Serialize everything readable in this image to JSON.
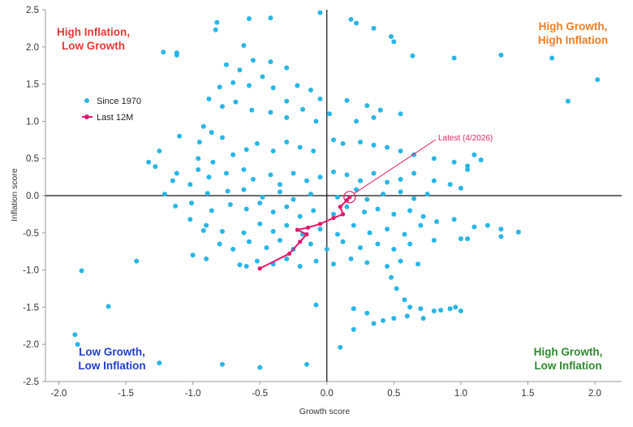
{
  "chart_data": {
    "type": "scatter",
    "xlabel": "Growth score",
    "ylabel": "Inflation score",
    "xlim": [
      -2.1,
      2.2
    ],
    "ylim": [
      -2.5,
      2.5
    ],
    "x_ticks": [
      "-2.0",
      "-1.5",
      "-1.0",
      "-0.5",
      "0.0",
      "0.5",
      "1.0",
      "1.5",
      "2.0"
    ],
    "y_ticks": [
      "2.5",
      "2.0",
      "1.5",
      "1.0",
      "0.5",
      "0.0",
      "-0.5",
      "-1.0",
      "-1.5",
      "-2.0",
      "-2.5"
    ],
    "grid": false,
    "legend_position": "top-left",
    "colors": {
      "since1970": "#29b6e6",
      "last12m": "#e0196e",
      "quadrant_top_left": "#e53935",
      "quadrant_top_right": "#ef7d22",
      "quadrant_bottom_left": "#1f3fcf",
      "quadrant_bottom_right": "#2e8b2e",
      "annotation": "#e0245e"
    },
    "quadrant_labels": {
      "top_left": [
        "High Inflation,",
        "Low Growth"
      ],
      "top_right": [
        "High Growth,",
        "High Inflation"
      ],
      "bottom_left": [
        "Low Growth,",
        "Low Inflation"
      ],
      "bottom_right": [
        "High Growth,",
        "Low Inflation"
      ]
    },
    "legend": [
      {
        "name": "Since 1970",
        "marker": "dot"
      },
      {
        "name": "Last 12M",
        "marker": "line-dot"
      }
    ],
    "annotation": {
      "text": "Latest (4/2026)",
      "x": 0.17,
      "y": -0.02
    },
    "series": [
      {
        "name": "Since 1970",
        "points": [
          [
            -0.05,
            2.46
          ],
          [
            -0.58,
            2.38
          ],
          [
            0.18,
            2.37
          ],
          [
            -0.42,
            2.39
          ],
          [
            -0.82,
            2.33
          ],
          [
            0.22,
            2.32
          ],
          [
            0.35,
            2.25
          ],
          [
            0.48,
            2.14
          ],
          [
            -0.62,
            2.02
          ],
          [
            0.5,
            2.07
          ],
          [
            -0.83,
            2.23
          ],
          [
            -1.12,
            1.92
          ],
          [
            -1.22,
            1.93
          ],
          [
            -1.12,
            1.89
          ],
          [
            0.64,
            1.88
          ],
          [
            0.95,
            1.85
          ],
          [
            1.3,
            1.89
          ],
          [
            1.68,
            1.85
          ],
          [
            2.02,
            1.56
          ],
          [
            1.8,
            1.27
          ],
          [
            -0.75,
            1.76
          ],
          [
            -0.65,
            1.69
          ],
          [
            -0.55,
            1.82
          ],
          [
            -0.42,
            1.8
          ],
          [
            -0.3,
            1.72
          ],
          [
            -0.48,
            1.6
          ],
          [
            -0.58,
            1.48
          ],
          [
            -0.7,
            1.52
          ],
          [
            -0.8,
            1.46
          ],
          [
            -0.4,
            1.45
          ],
          [
            -0.22,
            1.48
          ],
          [
            -0.12,
            1.42
          ],
          [
            -0.05,
            1.3
          ],
          [
            0.15,
            1.28
          ],
          [
            0.3,
            1.21
          ],
          [
            0.4,
            1.15
          ],
          [
            0.55,
            1.1
          ],
          [
            0.35,
            1.05
          ],
          [
            0.22,
            1.0
          ],
          [
            -0.3,
            1.05
          ],
          [
            -0.42,
            1.12
          ],
          [
            -0.56,
            1.15
          ],
          [
            -0.68,
            1.26
          ],
          [
            -0.78,
            1.2
          ],
          [
            -0.88,
            1.3
          ],
          [
            -0.3,
            1.27
          ],
          [
            -0.18,
            1.16
          ],
          [
            -0.08,
            1.0
          ],
          [
            0.02,
            1.1
          ],
          [
            -0.92,
            0.93
          ],
          [
            -0.86,
            0.85
          ],
          [
            -0.78,
            0.78
          ],
          [
            -0.95,
            0.72
          ],
          [
            -1.1,
            0.8
          ],
          [
            -1.25,
            0.6
          ],
          [
            -1.33,
            0.45
          ],
          [
            -1.28,
            0.39
          ],
          [
            -0.96,
            0.5
          ],
          [
            -0.85,
            0.45
          ],
          [
            -0.7,
            0.55
          ],
          [
            -0.6,
            0.62
          ],
          [
            -0.52,
            0.7
          ],
          [
            -0.4,
            0.6
          ],
          [
            -0.3,
            0.72
          ],
          [
            -0.2,
            0.65
          ],
          [
            -0.1,
            0.6
          ],
          [
            0.05,
            0.75
          ],
          [
            0.12,
            0.7
          ],
          [
            0.25,
            0.72
          ],
          [
            0.35,
            0.68
          ],
          [
            0.45,
            0.65
          ],
          [
            0.55,
            0.6
          ],
          [
            0.65,
            0.55
          ],
          [
            0.8,
            0.5
          ],
          [
            0.95,
            0.45
          ],
          [
            1.05,
            0.4
          ],
          [
            1.1,
            0.55
          ],
          [
            1.15,
            0.48
          ],
          [
            -1.12,
            0.3
          ],
          [
            -0.96,
            0.35
          ],
          [
            -1.15,
            0.2
          ],
          [
            -1.02,
            0.15
          ],
          [
            -0.88,
            0.25
          ],
          [
            -0.75,
            0.3
          ],
          [
            -0.62,
            0.35
          ],
          [
            -0.55,
            0.22
          ],
          [
            -0.42,
            0.28
          ],
          [
            -0.35,
            0.15
          ],
          [
            -0.25,
            0.3
          ],
          [
            -0.15,
            0.2
          ],
          [
            -0.05,
            0.25
          ],
          [
            0.05,
            0.32
          ],
          [
            0.15,
            0.28
          ],
          [
            0.25,
            0.2
          ],
          [
            0.35,
            0.3
          ],
          [
            0.45,
            0.18
          ],
          [
            0.55,
            0.22
          ],
          [
            0.65,
            0.3
          ],
          [
            0.8,
            0.2
          ],
          [
            0.92,
            0.15
          ],
          [
            1.0,
            0.1
          ],
          [
            1.05,
            0.35
          ],
          [
            -1.21,
            0.02
          ],
          [
            -0.89,
            0.03
          ],
          [
            -0.74,
            0.06
          ],
          [
            -0.62,
            0.08
          ],
          [
            -0.48,
            -0.02
          ],
          [
            -0.35,
            0.05
          ],
          [
            -0.25,
            -0.05
          ],
          [
            -0.12,
            0.02
          ],
          [
            0.08,
            -0.02
          ],
          [
            0.22,
            0.08
          ],
          [
            0.3,
            -0.05
          ],
          [
            0.42,
            0.02
          ],
          [
            0.55,
            0.05
          ],
          [
            0.65,
            -0.04
          ],
          [
            0.75,
            0.02
          ],
          [
            -1.13,
            -0.14
          ],
          [
            -1.01,
            -0.1
          ],
          [
            -0.86,
            -0.2
          ],
          [
            -0.72,
            -0.12
          ],
          [
            -0.6,
            -0.18
          ],
          [
            -0.5,
            -0.1
          ],
          [
            -0.4,
            -0.22
          ],
          [
            -0.3,
            -0.15
          ],
          [
            -0.2,
            -0.28
          ],
          [
            -0.1,
            -0.2
          ],
          [
            0.05,
            -0.25
          ],
          [
            0.15,
            -0.15
          ],
          [
            0.28,
            -0.22
          ],
          [
            0.38,
            -0.18
          ],
          [
            0.5,
            -0.25
          ],
          [
            0.62,
            -0.2
          ],
          [
            0.72,
            -0.28
          ],
          [
            -1.02,
            -0.32
          ],
          [
            -0.9,
            -0.4
          ],
          [
            -0.92,
            -0.47
          ],
          [
            -0.78,
            -0.48
          ],
          [
            -0.62,
            -0.5
          ],
          [
            -0.5,
            -0.38
          ],
          [
            -0.4,
            -0.48
          ],
          [
            -0.3,
            -0.4
          ],
          [
            -0.18,
            -0.52
          ],
          [
            -0.05,
            -0.45
          ],
          [
            0.08,
            -0.52
          ],
          [
            0.2,
            -0.4
          ],
          [
            0.32,
            -0.5
          ],
          [
            0.45,
            -0.45
          ],
          [
            0.58,
            -0.52
          ],
          [
            0.7,
            -0.4
          ],
          [
            0.82,
            -0.35
          ],
          [
            0.95,
            -0.32
          ],
          [
            1.1,
            -0.42
          ],
          [
            1.2,
            -0.4
          ],
          [
            1.3,
            -0.45
          ],
          [
            1.3,
            -0.55
          ],
          [
            1.43,
            -0.49
          ],
          [
            -0.8,
            -0.65
          ],
          [
            -0.7,
            -0.72
          ],
          [
            -0.58,
            -0.62
          ],
          [
            -0.45,
            -0.7
          ],
          [
            -0.35,
            -0.6
          ],
          [
            -0.25,
            -0.72
          ],
          [
            -0.12,
            -0.65
          ],
          [
            0.0,
            -0.72
          ],
          [
            0.12,
            -0.62
          ],
          [
            0.25,
            -0.7
          ],
          [
            0.38,
            -0.65
          ],
          [
            0.5,
            -0.72
          ],
          [
            0.62,
            -0.65
          ],
          [
            0.8,
            -0.6
          ],
          [
            1.0,
            -0.58
          ],
          [
            1.05,
            -0.58
          ],
          [
            -0.65,
            -0.93
          ],
          [
            -0.52,
            -0.88
          ],
          [
            -0.4,
            -0.92
          ],
          [
            -0.3,
            -0.85
          ],
          [
            -0.2,
            -0.95
          ],
          [
            -0.08,
            -0.88
          ],
          [
            0.05,
            -0.92
          ],
          [
            0.18,
            -0.85
          ],
          [
            0.3,
            -0.9
          ],
          [
            0.45,
            -0.95
          ],
          [
            0.55,
            -0.88
          ],
          [
            0.68,
            -0.92
          ],
          [
            -0.6,
            -0.95
          ],
          [
            -0.9,
            -0.85
          ],
          [
            -1.0,
            -0.8
          ],
          [
            -1.42,
            -0.88
          ],
          [
            -1.83,
            -1.01
          ],
          [
            -1.63,
            -1.49
          ],
          [
            -0.08,
            -1.47
          ],
          [
            0.2,
            -1.52
          ],
          [
            0.48,
            -1.1
          ],
          [
            0.52,
            -1.25
          ],
          [
            0.58,
            -1.4
          ],
          [
            0.62,
            -1.5
          ],
          [
            0.7,
            -1.52
          ],
          [
            0.8,
            -1.55
          ],
          [
            0.85,
            -1.54
          ],
          [
            0.92,
            -1.52
          ],
          [
            0.96,
            -1.5
          ],
          [
            1.0,
            -1.55
          ],
          [
            0.35,
            -1.72
          ],
          [
            0.42,
            -1.68
          ],
          [
            0.5,
            -1.65
          ],
          [
            0.6,
            -1.62
          ],
          [
            0.72,
            -1.65
          ],
          [
            0.2,
            -1.8
          ],
          [
            0.3,
            -1.58
          ],
          [
            -1.88,
            -1.87
          ],
          [
            -1.86,
            -2.0
          ],
          [
            -1.25,
            -2.25
          ],
          [
            -0.78,
            -2.27
          ],
          [
            -0.5,
            -2.31
          ],
          [
            -0.15,
            -2.27
          ],
          [
            0.1,
            -2.04
          ]
        ]
      },
      {
        "name": "Last 12M",
        "points": [
          [
            -0.5,
            -0.98
          ],
          [
            -0.28,
            -0.78
          ],
          [
            -0.2,
            -0.62
          ],
          [
            -0.15,
            -0.52
          ],
          [
            -0.22,
            -0.46
          ],
          [
            -0.14,
            -0.43
          ],
          [
            -0.05,
            -0.38
          ],
          [
            0.05,
            -0.3
          ],
          [
            0.12,
            -0.25
          ],
          [
            0.1,
            -0.15
          ],
          [
            0.15,
            -0.06
          ],
          [
            0.17,
            -0.02
          ]
        ]
      }
    ]
  }
}
